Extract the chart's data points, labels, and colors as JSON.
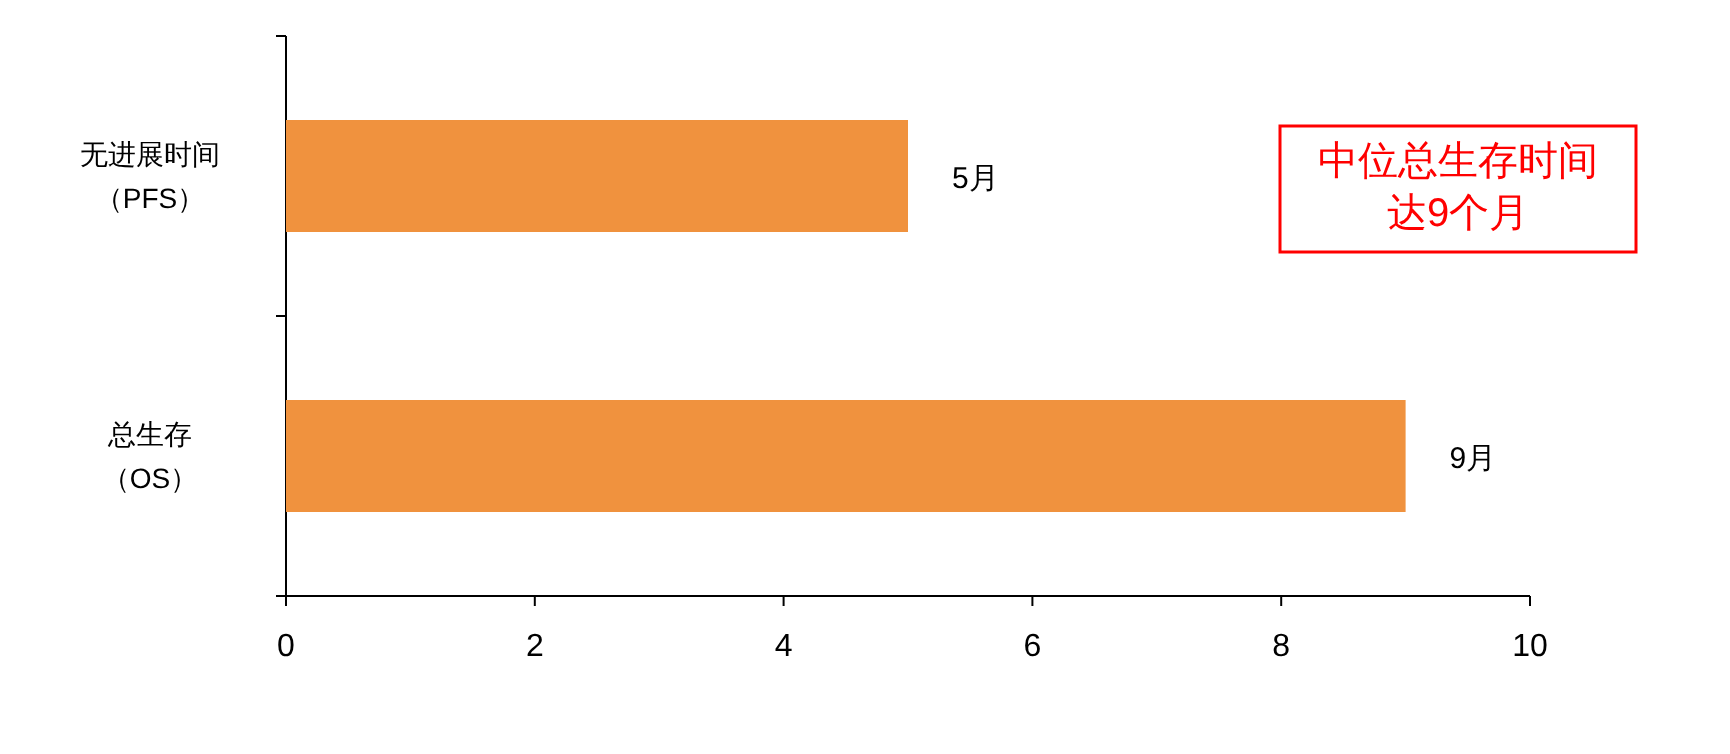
{
  "chart_data": {
    "type": "bar",
    "orientation": "horizontal",
    "categories": [
      "无进展时间（PFS）",
      "总生存（OS）"
    ],
    "values": [
      5,
      9
    ],
    "color": "#f0923e",
    "value_labels": [
      "5月",
      "9月"
    ],
    "xlim": [
      0,
      10
    ],
    "xticks": [
      0,
      2,
      4,
      6,
      8,
      10
    ],
    "annotations": [
      "中位总生存时间达9个月"
    ]
  }
}
